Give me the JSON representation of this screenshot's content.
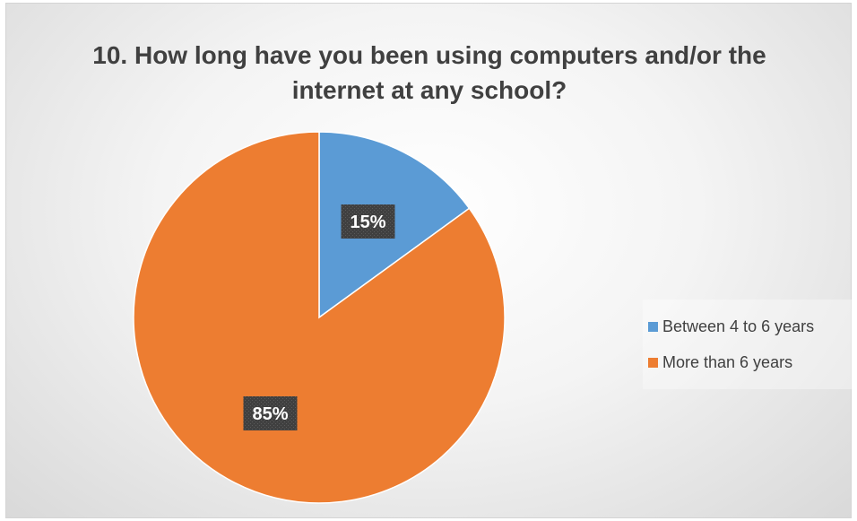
{
  "chart_data": {
    "type": "pie",
    "title": "10. How long have you been using computers and/or the internet at any school?",
    "categories": [
      "Between 4 to 6 years",
      "More than 6 years"
    ],
    "values": [
      15,
      85
    ],
    "labels": [
      "15%",
      "85%"
    ],
    "colors": [
      "#5b9bd5",
      "#ed7d31"
    ],
    "start_angle_deg": 0,
    "direction": "clockwise",
    "legend": "right",
    "label_style": {
      "background": "#404040",
      "text_color": "#ffffff"
    }
  }
}
